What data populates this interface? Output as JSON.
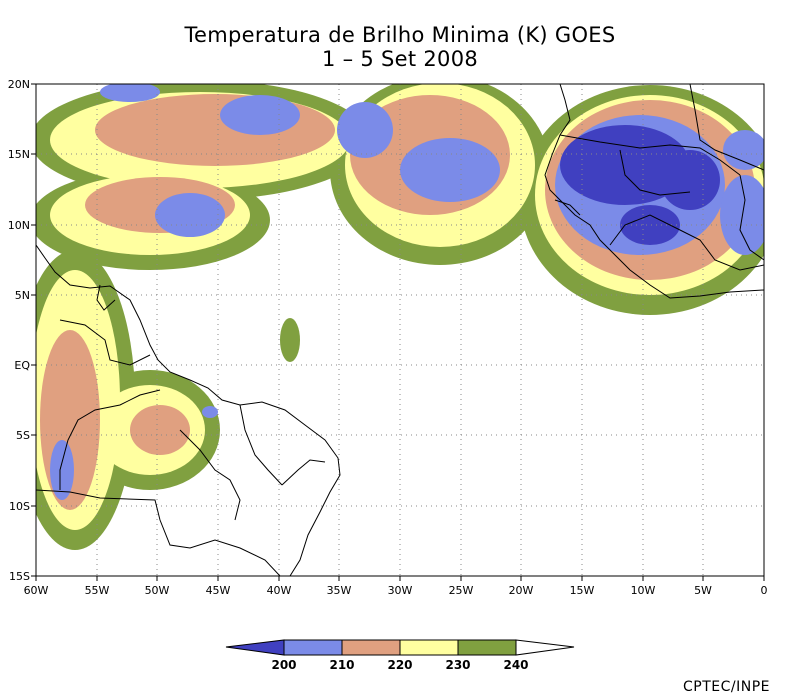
{
  "title": {
    "line1": "Temperatura de Brilho Minima (K) GOES",
    "line2": "1 – 5 Set 2008"
  },
  "axes": {
    "lat_ticks": [
      "20N",
      "15N",
      "10N",
      "5N",
      "EQ",
      "5S",
      "10S",
      "15S"
    ],
    "lon_ticks": [
      "60W",
      "55W",
      "50W",
      "45W",
      "40W",
      "35W",
      "30W",
      "25W",
      "20W",
      "15W",
      "10W",
      "5W",
      "0"
    ],
    "lat_range": [
      -15,
      20
    ],
    "lon_range": [
      -60,
      0
    ]
  },
  "legend": {
    "labels": [
      "200",
      "210",
      "220",
      "230",
      "240"
    ],
    "colors": [
      "#4040c0",
      "#7b8be8",
      "#e0a080",
      "#ffffa0",
      "#80a040"
    ],
    "low_color": "#4040c0",
    "high_color": "#ffffff"
  },
  "credit": "CPTEC/INPE"
}
